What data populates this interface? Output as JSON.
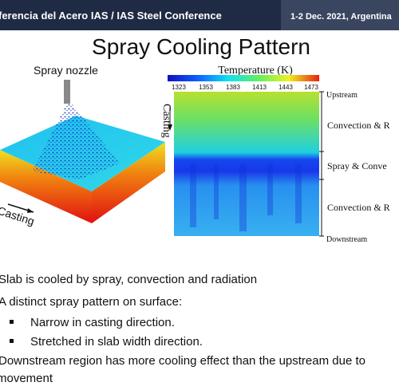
{
  "header": {
    "conference": "ferencia del Acero IAS / IAS Steel Conference",
    "date": "1-2 Dec. 2021, Argentina"
  },
  "title": "Spray Cooling Pattern",
  "left_figure": {
    "nozzle_label": "Spray nozzle",
    "casting_label": "Casting"
  },
  "right_figure": {
    "colorbar_title": "Temperature (K)",
    "colorbar_ticks": [
      "1323",
      "1353",
      "1383",
      "1413",
      "1443",
      "1473"
    ],
    "casting_label": "Casting",
    "regions": [
      "Upstream",
      "Convection & R",
      "Spray & Conve",
      "Convection & R",
      "Downstream"
    ]
  },
  "bullets": [
    {
      "text": "Slab is cooled by spray, convection and radiation"
    },
    {
      "text": "A distinct spray pattern on surface:"
    },
    {
      "text": "Narrow in casting direction.",
      "sub": true
    },
    {
      "text": "Stretched in slab width direction.",
      "sub": true
    },
    {
      "text": "Downstream region has more cooling effect than the upstream due to"
    },
    {
      "text": "movement"
    }
  ]
}
